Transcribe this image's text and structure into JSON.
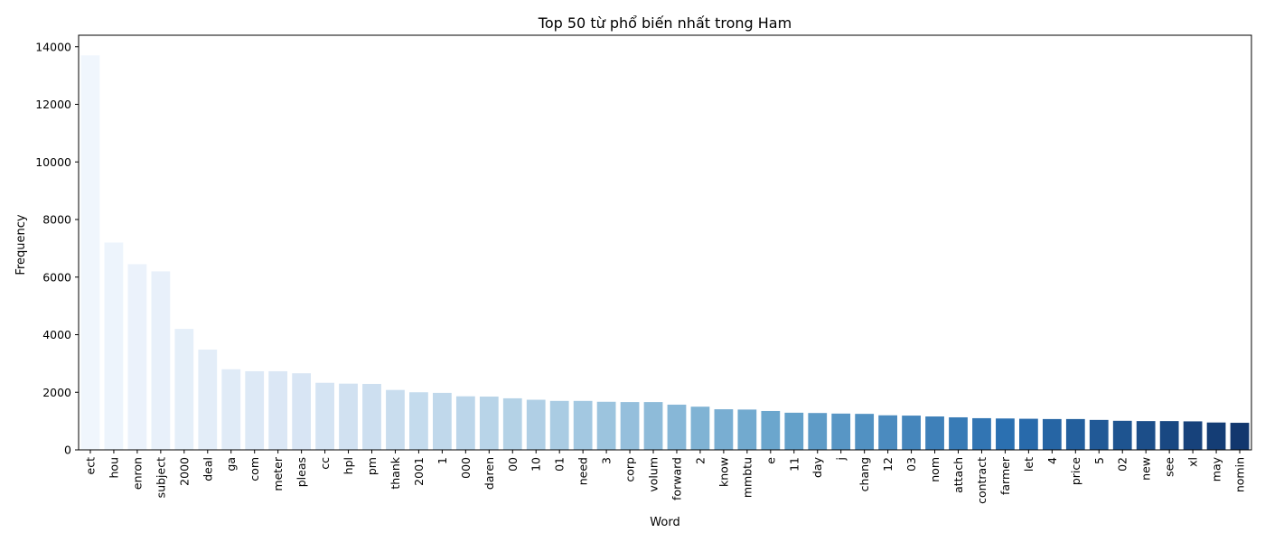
{
  "chart_data": {
    "type": "bar",
    "title": "Top 50 từ phổ biến nhất trong Ham",
    "xlabel": "Word",
    "ylabel": "Frequency",
    "ylim": [
      0,
      14400
    ],
    "yticks": [
      0,
      2000,
      4000,
      6000,
      8000,
      10000,
      12000,
      14000
    ],
    "grid": false,
    "palette": "Blues (light to dark, left to right)",
    "categories": [
      "ect",
      "hou",
      "enron",
      "subject",
      "2000",
      "deal",
      "ga",
      "com",
      "meter",
      "pleas",
      "cc",
      "hpl",
      "pm",
      "thank",
      "2001",
      "1",
      "000",
      "daren",
      "00",
      "10",
      "01",
      "need",
      "3",
      "corp",
      "volum",
      "forward",
      "2",
      "know",
      "mmbtu",
      "e",
      "11",
      "day",
      "j",
      "chang",
      "12",
      "03",
      "nom",
      "attach",
      "contract",
      "farmer",
      "let",
      "4",
      "price",
      "5",
      "02",
      "new",
      "see",
      "xl",
      "may",
      "nomin"
    ],
    "values": [
      13700,
      7200,
      6450,
      6200,
      4200,
      3480,
      2800,
      2730,
      2730,
      2660,
      2330,
      2300,
      2290,
      2080,
      2000,
      1980,
      1860,
      1850,
      1790,
      1740,
      1700,
      1700,
      1670,
      1660,
      1660,
      1570,
      1500,
      1410,
      1400,
      1350,
      1290,
      1280,
      1260,
      1250,
      1200,
      1190,
      1160,
      1130,
      1100,
      1090,
      1080,
      1070,
      1070,
      1040,
      1010,
      1000,
      1000,
      990,
      950,
      940
    ]
  }
}
